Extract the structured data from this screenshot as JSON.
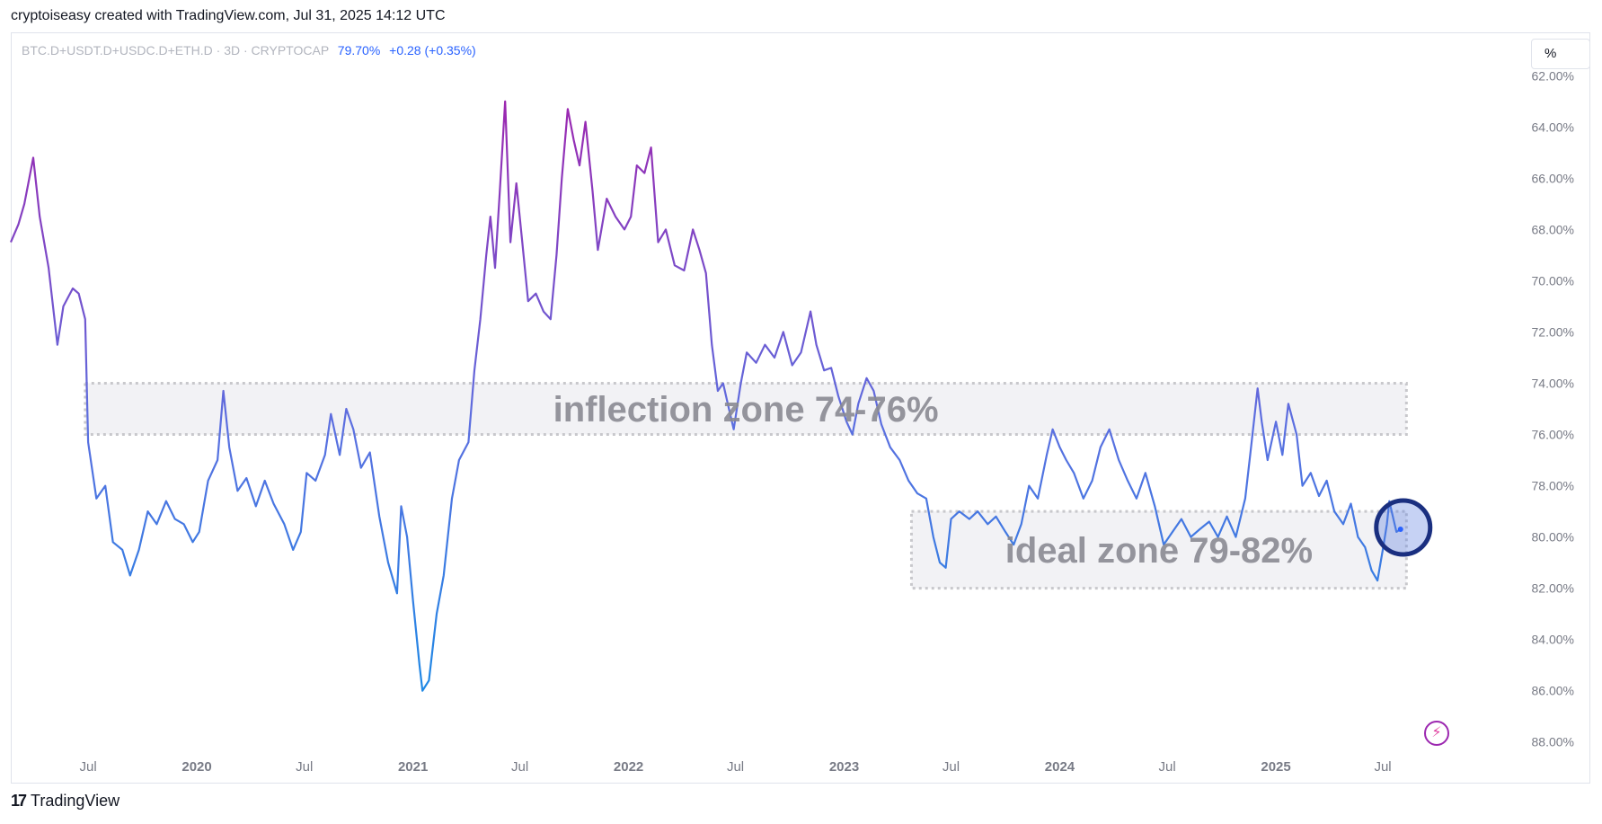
{
  "header": {
    "text": "cryptoiseasy created with TradingView.com, Jul 31, 2025 14:12 UTC"
  },
  "symbol": {
    "name": "BTC.D+USDT.D+USDC.D+ETH.D · 3D · CRYPTOCAP",
    "value": "79.70%",
    "change": "+0.28 (+0.35%)"
  },
  "scale_button": {
    "label": "%"
  },
  "footer": {
    "logo": "17",
    "name": "TradingView"
  },
  "colors": {
    "line_start": "#9c27b0",
    "line_mid": "#5b6fe0",
    "line_end": "#1e88e5",
    "zone_fill": "#f2f2f5",
    "zone_border": "#c8c8cc",
    "zone_text": "#8a8a92",
    "marker": "#1a2f80"
  },
  "chart_data": {
    "type": "line",
    "y_axis": {
      "inverted": true,
      "ylim": [
        61.5,
        88.5
      ],
      "tick_values": [
        62,
        64,
        66,
        68,
        70,
        72,
        74,
        76,
        78,
        80,
        82,
        84,
        86,
        88
      ],
      "tick_labels": [
        "62.00%",
        "64.00%",
        "66.00%",
        "68.00%",
        "70.00%",
        "72.00%",
        "74.00%",
        "76.00%",
        "78.00%",
        "80.00%",
        "82.00%",
        "84.00%",
        "86.00%",
        "88.00%"
      ]
    },
    "x_axis": {
      "xlim": [
        "2019-02-20",
        "2025-10-20"
      ],
      "ticks": [
        {
          "label": "Jul",
          "date": "2019-07-01",
          "bold": false
        },
        {
          "label": "2020",
          "date": "2020-01-01",
          "bold": true
        },
        {
          "label": "Jul",
          "date": "2020-07-01",
          "bold": false
        },
        {
          "label": "2021",
          "date": "2021-01-01",
          "bold": true
        },
        {
          "label": "Jul",
          "date": "2021-07-01",
          "bold": false
        },
        {
          "label": "2022",
          "date": "2022-01-01",
          "bold": true
        },
        {
          "label": "Jul",
          "date": "2022-07-01",
          "bold": false
        },
        {
          "label": "2023",
          "date": "2023-01-01",
          "bold": true
        },
        {
          "label": "Jul",
          "date": "2023-07-01",
          "bold": false
        },
        {
          "label": "2024",
          "date": "2024-01-01",
          "bold": true
        },
        {
          "label": "Jul",
          "date": "2024-07-01",
          "bold": false
        },
        {
          "label": "2025",
          "date": "2025-01-01",
          "bold": true
        },
        {
          "label": "Jul",
          "date": "2025-07-01",
          "bold": false
        }
      ]
    },
    "series": [
      {
        "points": [
          [
            "2019-02-20",
            68.5
          ],
          [
            "2019-03-05",
            67.8
          ],
          [
            "2019-03-15",
            67.0
          ],
          [
            "2019-03-30",
            65.2
          ],
          [
            "2019-04-10",
            67.5
          ],
          [
            "2019-04-25",
            69.5
          ],
          [
            "2019-05-10",
            72.5
          ],
          [
            "2019-05-20",
            71.0
          ],
          [
            "2019-06-05",
            70.3
          ],
          [
            "2019-06-15",
            70.5
          ],
          [
            "2019-06-26",
            71.5
          ],
          [
            "2019-07-01",
            76.3
          ],
          [
            "2019-07-15",
            78.5
          ],
          [
            "2019-07-30",
            78.0
          ],
          [
            "2019-08-12",
            80.2
          ],
          [
            "2019-08-28",
            80.5
          ],
          [
            "2019-09-10",
            81.5
          ],
          [
            "2019-09-25",
            80.5
          ],
          [
            "2019-10-10",
            79.0
          ],
          [
            "2019-10-25",
            79.5
          ],
          [
            "2019-11-10",
            78.6
          ],
          [
            "2019-11-25",
            79.3
          ],
          [
            "2019-12-10",
            79.5
          ],
          [
            "2019-12-25",
            80.2
          ],
          [
            "2020-01-05",
            79.8
          ],
          [
            "2020-01-20",
            77.8
          ],
          [
            "2020-02-05",
            77.0
          ],
          [
            "2020-02-15",
            74.3
          ],
          [
            "2020-02-25",
            76.5
          ],
          [
            "2020-03-10",
            78.2
          ],
          [
            "2020-03-25",
            77.7
          ],
          [
            "2020-04-10",
            78.8
          ],
          [
            "2020-04-25",
            77.8
          ],
          [
            "2020-05-10",
            78.7
          ],
          [
            "2020-05-28",
            79.5
          ],
          [
            "2020-06-12",
            80.5
          ],
          [
            "2020-06-25",
            79.8
          ],
          [
            "2020-07-05",
            77.5
          ],
          [
            "2020-07-20",
            77.8
          ],
          [
            "2020-08-05",
            76.8
          ],
          [
            "2020-08-15",
            75.2
          ],
          [
            "2020-08-30",
            76.8
          ],
          [
            "2020-09-10",
            75.0
          ],
          [
            "2020-09-22",
            75.8
          ],
          [
            "2020-10-05",
            77.3
          ],
          [
            "2020-10-20",
            76.7
          ],
          [
            "2020-11-05",
            79.2
          ],
          [
            "2020-11-20",
            81.0
          ],
          [
            "2020-12-05",
            82.2
          ],
          [
            "2020-12-12",
            78.8
          ],
          [
            "2020-12-22",
            80.0
          ],
          [
            "2021-01-01",
            82.5
          ],
          [
            "2021-01-12",
            85.0
          ],
          [
            "2021-01-17",
            86.0
          ],
          [
            "2021-01-28",
            85.6
          ],
          [
            "2021-02-10",
            83.0
          ],
          [
            "2021-02-22",
            81.5
          ],
          [
            "2021-03-08",
            78.5
          ],
          [
            "2021-03-20",
            77.0
          ],
          [
            "2021-04-05",
            76.3
          ],
          [
            "2021-04-15",
            73.5
          ],
          [
            "2021-04-25",
            71.5
          ],
          [
            "2021-05-05",
            69.0
          ],
          [
            "2021-05-12",
            67.5
          ],
          [
            "2021-05-20",
            69.5
          ],
          [
            "2021-05-28",
            66.5
          ],
          [
            "2021-06-06",
            63.0
          ],
          [
            "2021-06-15",
            68.5
          ],
          [
            "2021-06-25",
            66.2
          ],
          [
            "2021-07-05",
            68.5
          ],
          [
            "2021-07-15",
            70.8
          ],
          [
            "2021-07-28",
            70.5
          ],
          [
            "2021-08-10",
            71.2
          ],
          [
            "2021-08-22",
            71.5
          ],
          [
            "2021-09-01",
            69.0
          ],
          [
            "2021-09-10",
            66.0
          ],
          [
            "2021-09-20",
            63.3
          ],
          [
            "2021-09-30",
            64.5
          ],
          [
            "2021-10-10",
            65.5
          ],
          [
            "2021-10-20",
            63.8
          ],
          [
            "2021-11-01",
            66.5
          ],
          [
            "2021-11-10",
            68.8
          ],
          [
            "2021-11-25",
            66.8
          ],
          [
            "2021-12-10",
            67.5
          ],
          [
            "2021-12-25",
            68.0
          ],
          [
            "2022-01-05",
            67.5
          ],
          [
            "2022-01-15",
            65.5
          ],
          [
            "2022-01-28",
            65.8
          ],
          [
            "2022-02-08",
            64.8
          ],
          [
            "2022-02-20",
            68.5
          ],
          [
            "2022-03-05",
            68.0
          ],
          [
            "2022-03-20",
            69.4
          ],
          [
            "2022-04-05",
            69.6
          ],
          [
            "2022-04-20",
            68.0
          ],
          [
            "2022-05-01",
            68.8
          ],
          [
            "2022-05-12",
            69.7
          ],
          [
            "2022-05-22",
            72.5
          ],
          [
            "2022-06-01",
            74.3
          ],
          [
            "2022-06-10",
            74.0
          ],
          [
            "2022-06-20",
            75.0
          ],
          [
            "2022-06-28",
            75.8
          ],
          [
            "2022-07-10",
            74.0
          ],
          [
            "2022-07-20",
            72.8
          ],
          [
            "2022-08-05",
            73.2
          ],
          [
            "2022-08-20",
            72.5
          ],
          [
            "2022-09-05",
            73.0
          ],
          [
            "2022-09-20",
            72.0
          ],
          [
            "2022-10-05",
            73.3
          ],
          [
            "2022-10-20",
            72.8
          ],
          [
            "2022-11-05",
            71.2
          ],
          [
            "2022-11-15",
            72.5
          ],
          [
            "2022-11-28",
            73.5
          ],
          [
            "2022-12-10",
            73.4
          ],
          [
            "2022-12-22",
            74.5
          ],
          [
            "2023-01-05",
            75.5
          ],
          [
            "2023-01-15",
            76.0
          ],
          [
            "2023-01-25",
            74.8
          ],
          [
            "2023-02-08",
            73.8
          ],
          [
            "2023-02-20",
            74.3
          ],
          [
            "2023-03-05",
            75.6
          ],
          [
            "2023-03-20",
            76.5
          ],
          [
            "2023-04-05",
            77.0
          ],
          [
            "2023-04-20",
            77.8
          ],
          [
            "2023-05-05",
            78.3
          ],
          [
            "2023-05-20",
            78.5
          ],
          [
            "2023-06-01",
            80.0
          ],
          [
            "2023-06-12",
            81.0
          ],
          [
            "2023-06-22",
            81.2
          ],
          [
            "2023-07-01",
            79.3
          ],
          [
            "2023-07-15",
            79.0
          ],
          [
            "2023-08-01",
            79.3
          ],
          [
            "2023-08-15",
            79.0
          ],
          [
            "2023-09-01",
            79.5
          ],
          [
            "2023-09-15",
            79.2
          ],
          [
            "2023-10-01",
            79.8
          ],
          [
            "2023-10-15",
            80.3
          ],
          [
            "2023-10-28",
            79.5
          ],
          [
            "2023-11-10",
            78.0
          ],
          [
            "2023-11-25",
            78.5
          ],
          [
            "2023-12-10",
            76.8
          ],
          [
            "2023-12-20",
            75.8
          ],
          [
            "2024-01-01",
            76.5
          ],
          [
            "2024-01-12",
            77.0
          ],
          [
            "2024-01-25",
            77.5
          ],
          [
            "2024-02-10",
            78.5
          ],
          [
            "2024-02-25",
            77.8
          ],
          [
            "2024-03-10",
            76.5
          ],
          [
            "2024-03-25",
            75.8
          ],
          [
            "2024-04-10",
            77.0
          ],
          [
            "2024-04-25",
            77.8
          ],
          [
            "2024-05-10",
            78.5
          ],
          [
            "2024-05-25",
            77.5
          ],
          [
            "2024-06-10",
            78.8
          ],
          [
            "2024-06-25",
            80.3
          ],
          [
            "2024-07-10",
            79.8
          ],
          [
            "2024-07-25",
            79.3
          ],
          [
            "2024-08-10",
            80.0
          ],
          [
            "2024-08-25",
            79.7
          ],
          [
            "2024-09-10",
            79.4
          ],
          [
            "2024-09-25",
            80.0
          ],
          [
            "2024-10-10",
            79.2
          ],
          [
            "2024-10-25",
            80.0
          ],
          [
            "2024-11-10",
            78.5
          ],
          [
            "2024-11-20",
            76.5
          ],
          [
            "2024-12-01",
            74.2
          ],
          [
            "2024-12-08",
            75.5
          ],
          [
            "2024-12-18",
            77.0
          ],
          [
            "2025-01-01",
            75.5
          ],
          [
            "2025-01-12",
            76.8
          ],
          [
            "2025-01-22",
            74.8
          ],
          [
            "2025-02-05",
            76.0
          ],
          [
            "2025-02-15",
            78.0
          ],
          [
            "2025-03-01",
            77.5
          ],
          [
            "2025-03-15",
            78.4
          ],
          [
            "2025-03-28",
            77.8
          ],
          [
            "2025-04-10",
            79.0
          ],
          [
            "2025-04-25",
            79.5
          ],
          [
            "2025-05-08",
            78.7
          ],
          [
            "2025-05-20",
            80.0
          ],
          [
            "2025-06-01",
            80.4
          ],
          [
            "2025-06-12",
            81.3
          ],
          [
            "2025-06-22",
            81.7
          ],
          [
            "2025-07-01",
            80.5
          ],
          [
            "2025-07-08",
            79.5
          ],
          [
            "2025-07-12",
            78.6
          ],
          [
            "2025-07-18",
            79.2
          ],
          [
            "2025-07-24",
            79.8
          ],
          [
            "2025-07-31",
            79.7
          ]
        ]
      }
    ],
    "zones": [
      {
        "label": "inflection zone 74-76%",
        "y_range": [
          74,
          76
        ],
        "x_range": [
          "2019-06-26",
          "2025-08-10"
        ]
      },
      {
        "label": "ideal zone 79-82%",
        "y_range": [
          79,
          82
        ],
        "x_range": [
          "2023-04-25",
          "2025-08-10"
        ]
      }
    ],
    "marker": {
      "x": "2025-07-31",
      "y": 79.7
    }
  }
}
